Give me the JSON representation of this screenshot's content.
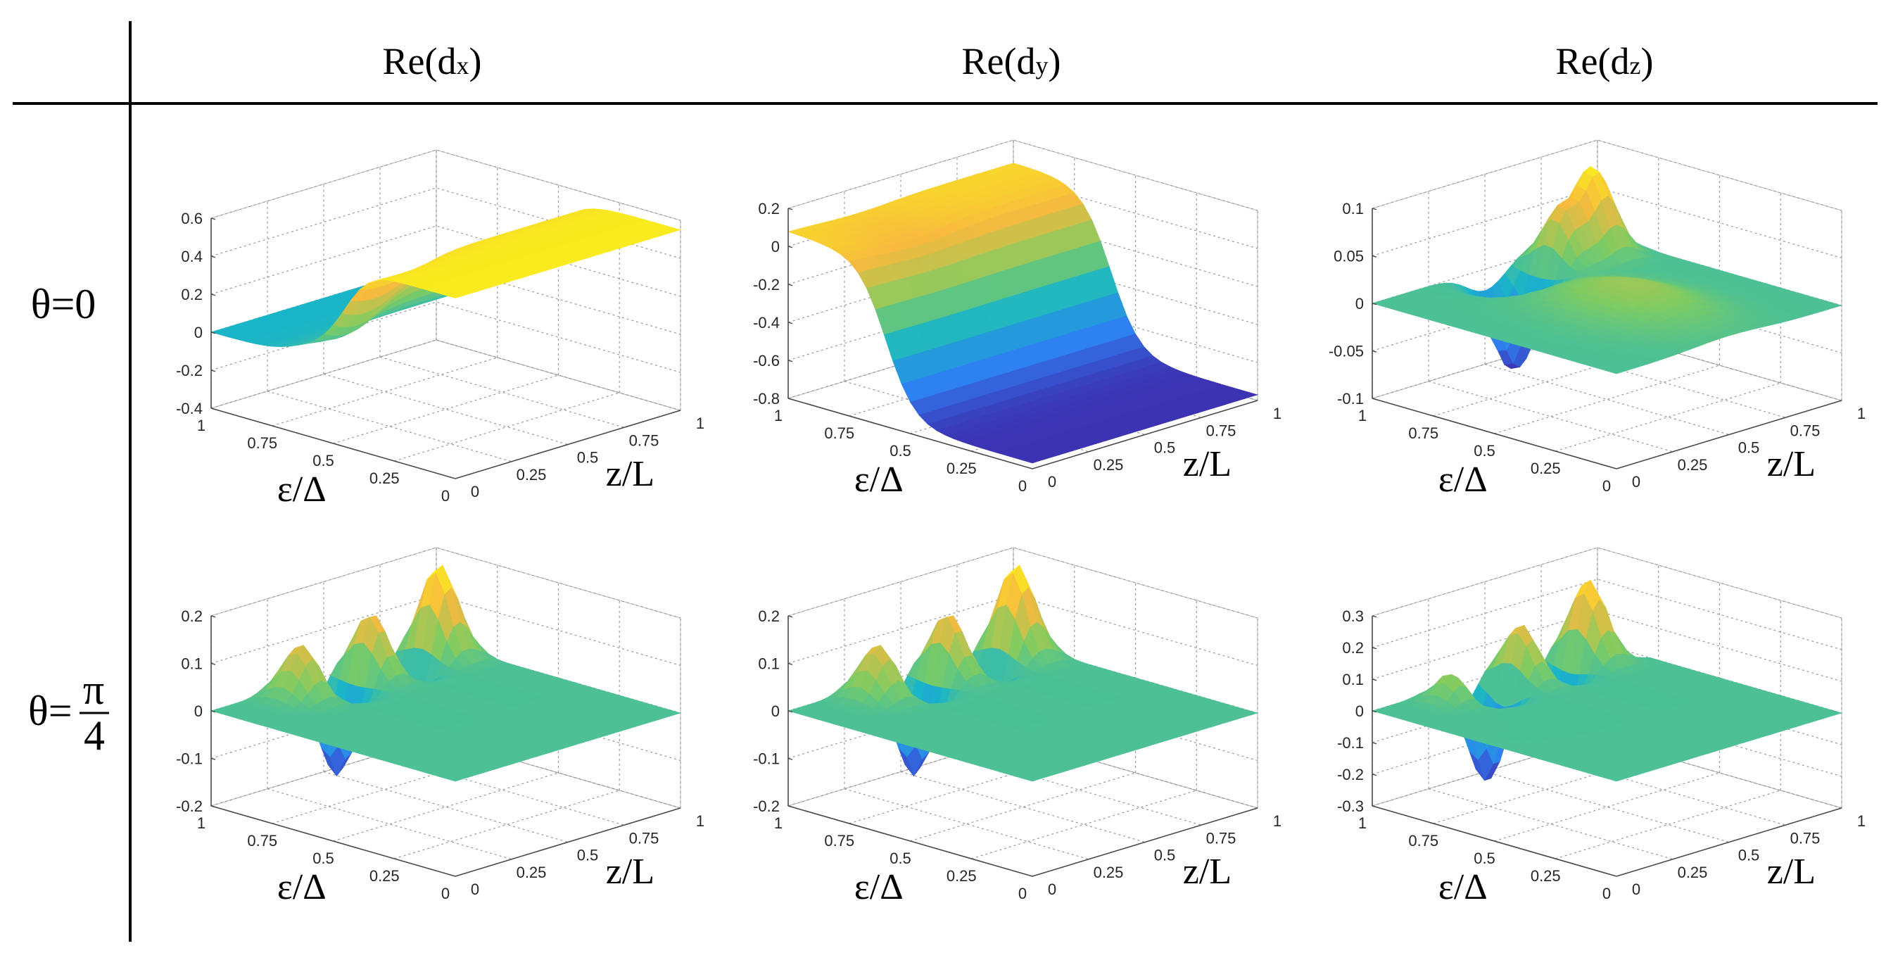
{
  "figure": {
    "column_titles": [
      {
        "base": "Re(d",
        "sub": "x",
        "close": ")"
      },
      {
        "base": "Re(d",
        "sub": "y",
        "close": ")"
      },
      {
        "base": "Re(d",
        "sub": "z",
        "close": ")"
      }
    ],
    "row_titles": [
      {
        "text": "θ=0"
      },
      {
        "prefix": "θ=",
        "numerator": "π",
        "denominator": "4"
      }
    ]
  },
  "chart_data": [
    {
      "type": "surface",
      "row": 0,
      "col": 0,
      "title": "Re(dx), θ=0",
      "xlabel": "ε/Δ",
      "ylabel": "z/L",
      "x_ticks": [
        "1",
        "0.75",
        "0.5",
        "0.25",
        "0"
      ],
      "y_ticks": [
        "0",
        "0.25",
        "0.5",
        "0.75",
        "1"
      ],
      "zlim": [
        -0.4,
        0.6
      ],
      "z_ticks": [
        "0.6",
        "0.4",
        "0.2",
        "0",
        "-0.2",
        "-0.4"
      ],
      "z_values": [
        0.6,
        0.4,
        0.2,
        0,
        -0.2,
        -0.4
      ],
      "surface": {
        "base": 0.0,
        "ramp": 0.55,
        "ramp_center": 0.45,
        "features": [
          [
            0.5,
            0.1,
            -0.2,
            0.08,
            0.15
          ]
        ]
      },
      "colormap": [
        "#3e26a8",
        "#2f7ff2",
        "#1ab5c8",
        "#7fcc62",
        "#f8ba3e",
        "#f9fb15"
      ]
    },
    {
      "type": "surface",
      "row": 0,
      "col": 1,
      "title": "Re(dy), θ=0",
      "xlabel": "ε/Δ",
      "ylabel": "z/L",
      "x_ticks": [
        "1",
        "0.75",
        "0.5",
        "0.25",
        "0"
      ],
      "y_ticks": [
        "0",
        "0.25",
        "0.5",
        "0.75",
        "1"
      ],
      "zlim": [
        -0.8,
        0.2
      ],
      "z_ticks": [
        "0.2",
        "0",
        "-0.2",
        "-0.4",
        "-0.6",
        "-0.8"
      ],
      "z_values": [
        0.2,
        0,
        -0.2,
        -0.4,
        -0.6,
        -0.8
      ],
      "surface": {
        "base": 0.08,
        "ramp": -0.85,
        "ramp_center": 0.4,
        "features": [
          [
            0.15,
            0.3,
            -0.05,
            0.1,
            0.15
          ]
        ]
      },
      "colormap": [
        "#3e26a8",
        "#2f7ff2",
        "#1ab5c8",
        "#7fcc62",
        "#f8ba3e",
        "#f9fb15"
      ]
    },
    {
      "type": "surface",
      "row": 0,
      "col": 2,
      "title": "Re(dz), θ=0",
      "xlabel": "ε/Δ",
      "ylabel": "z/L",
      "x_ticks": [
        "1",
        "0.75",
        "0.5",
        "0.25",
        "0"
      ],
      "y_ticks": [
        "0",
        "0.25",
        "0.5",
        "0.75",
        "1"
      ],
      "zlim": [
        -0.1,
        0.1
      ],
      "z_ticks": [
        "0.1",
        "0.05",
        "0",
        "-0.05",
        "-0.1"
      ],
      "z_values": [
        0.1,
        0.05,
        0,
        -0.05,
        -0.1
      ],
      "surface": {
        "base": 0.0,
        "ramp": 0.0,
        "ramp_center": 0.5,
        "features": [
          [
            0.12,
            0.5,
            -0.1,
            0.07,
            0.08
          ],
          [
            0.12,
            0.85,
            0.09,
            0.07,
            0.06
          ],
          [
            0.12,
            0.7,
            0.06,
            0.06,
            0.06
          ],
          [
            0.6,
            0.5,
            0.03,
            0.2,
            0.15
          ]
        ]
      },
      "colormap": [
        "#3e26a8",
        "#2f7ff2",
        "#1ab5c8",
        "#7fcc62",
        "#f8ba3e",
        "#f9fb15"
      ]
    },
    {
      "type": "surface",
      "row": 1,
      "col": 0,
      "title": "Re(dx), θ=π/4",
      "xlabel": "ε/Δ",
      "ylabel": "z/L",
      "x_ticks": [
        "1",
        "0.75",
        "0.5",
        "0.25",
        "0"
      ],
      "y_ticks": [
        "0",
        "0.25",
        "0.5",
        "0.75",
        "1"
      ],
      "zlim": [
        -0.2,
        0.2
      ],
      "z_ticks": [
        "0.2",
        "0.1",
        "0",
        "-0.1",
        "-0.2"
      ],
      "z_values": [
        0.2,
        0.1,
        0,
        -0.1,
        -0.2
      ],
      "surface": {
        "base": 0.0,
        "ramp": 0.0,
        "ramp_center": 0.5,
        "features": [
          [
            0.1,
            0.3,
            0.12,
            0.06,
            0.06
          ],
          [
            0.1,
            0.45,
            -0.2,
            0.06,
            0.06
          ],
          [
            0.1,
            0.6,
            0.15,
            0.06,
            0.06
          ],
          [
            0.1,
            0.75,
            -0.13,
            0.06,
            0.06
          ],
          [
            0.1,
            0.9,
            0.2,
            0.06,
            0.06
          ]
        ]
      },
      "colormap": [
        "#3e26a8",
        "#2f7ff2",
        "#1ab5c8",
        "#7fcc62",
        "#f8ba3e",
        "#f9fb15"
      ]
    },
    {
      "type": "surface",
      "row": 1,
      "col": 1,
      "title": "Re(dy), θ=π/4",
      "xlabel": "ε/Δ",
      "ylabel": "z/L",
      "x_ticks": [
        "1",
        "0.75",
        "0.5",
        "0.25",
        "0"
      ],
      "y_ticks": [
        "0",
        "0.25",
        "0.5",
        "0.75",
        "1"
      ],
      "zlim": [
        -0.2,
        0.2
      ],
      "z_ticks": [
        "0.2",
        "0.1",
        "0",
        "-0.1",
        "-0.2"
      ],
      "z_values": [
        0.2,
        0.1,
        0,
        -0.1,
        -0.2
      ],
      "surface": {
        "base": 0.0,
        "ramp": 0.0,
        "ramp_center": 0.5,
        "features": [
          [
            0.1,
            0.3,
            0.12,
            0.06,
            0.06
          ],
          [
            0.1,
            0.45,
            -0.2,
            0.06,
            0.06
          ],
          [
            0.1,
            0.6,
            0.15,
            0.06,
            0.06
          ],
          [
            0.1,
            0.75,
            -0.13,
            0.06,
            0.06
          ],
          [
            0.1,
            0.9,
            0.2,
            0.06,
            0.06
          ]
        ]
      },
      "colormap": [
        "#3e26a8",
        "#2f7ff2",
        "#1ab5c8",
        "#7fcc62",
        "#f8ba3e",
        "#f9fb15"
      ]
    },
    {
      "type": "surface",
      "row": 1,
      "col": 2,
      "title": "Re(dz), θ=π/4",
      "xlabel": "ε/Δ",
      "ylabel": "z/L",
      "x_ticks": [
        "1",
        "0.75",
        "0.5",
        "0.25",
        "0"
      ],
      "y_ticks": [
        "0",
        "0.25",
        "0.5",
        "0.75",
        "1"
      ],
      "zlim": [
        -0.3,
        0.3
      ],
      "z_ticks": [
        "0.3",
        "0.2",
        "0.1",
        "0",
        "-0.1",
        "-0.2",
        "-0.3"
      ],
      "z_values": [
        0.3,
        0.2,
        0.1,
        0,
        -0.1,
        -0.2,
        -0.3
      ],
      "surface": {
        "base": 0.0,
        "ramp": 0.0,
        "ramp_center": 0.5,
        "features": [
          [
            0.1,
            0.25,
            0.1,
            0.05,
            0.05
          ],
          [
            0.1,
            0.4,
            -0.3,
            0.06,
            0.06
          ],
          [
            0.1,
            0.55,
            0.2,
            0.06,
            0.06
          ],
          [
            0.1,
            0.7,
            -0.22,
            0.06,
            0.06
          ],
          [
            0.1,
            0.85,
            0.27,
            0.06,
            0.06
          ],
          [
            0.1,
            0.97,
            -0.1,
            0.04,
            0.05
          ]
        ]
      },
      "colormap": [
        "#3e26a8",
        "#2f7ff2",
        "#1ab5c8",
        "#7fcc62",
        "#f8ba3e",
        "#f9fb15"
      ]
    }
  ]
}
